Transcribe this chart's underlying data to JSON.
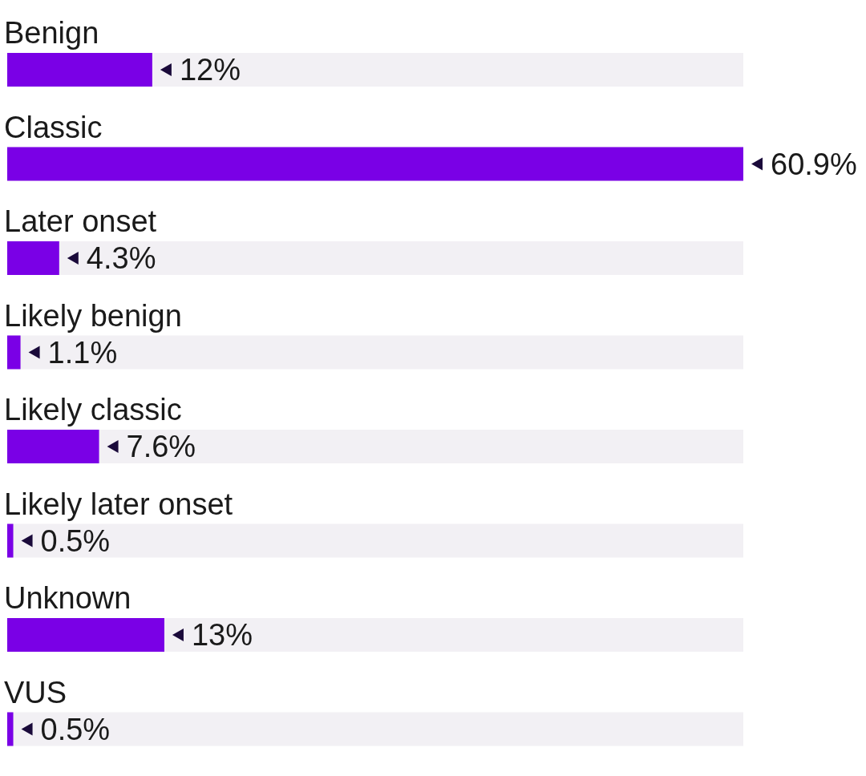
{
  "chart_data": {
    "type": "bar",
    "orientation": "horizontal",
    "categories": [
      "Benign",
      "Classic",
      "Later onset",
      "Likely benign",
      "Likely classic",
      "Likely later onset",
      "Unknown",
      "VUS"
    ],
    "values": [
      12,
      60.9,
      4.3,
      1.1,
      7.6,
      0.5,
      13,
      0.5
    ],
    "value_labels": [
      "12%",
      "60.9%",
      "4.3%",
      "1.1%",
      "7.6%",
      "0.5%",
      "13%",
      "0.5%"
    ],
    "color": "#7a00e6"
  }
}
